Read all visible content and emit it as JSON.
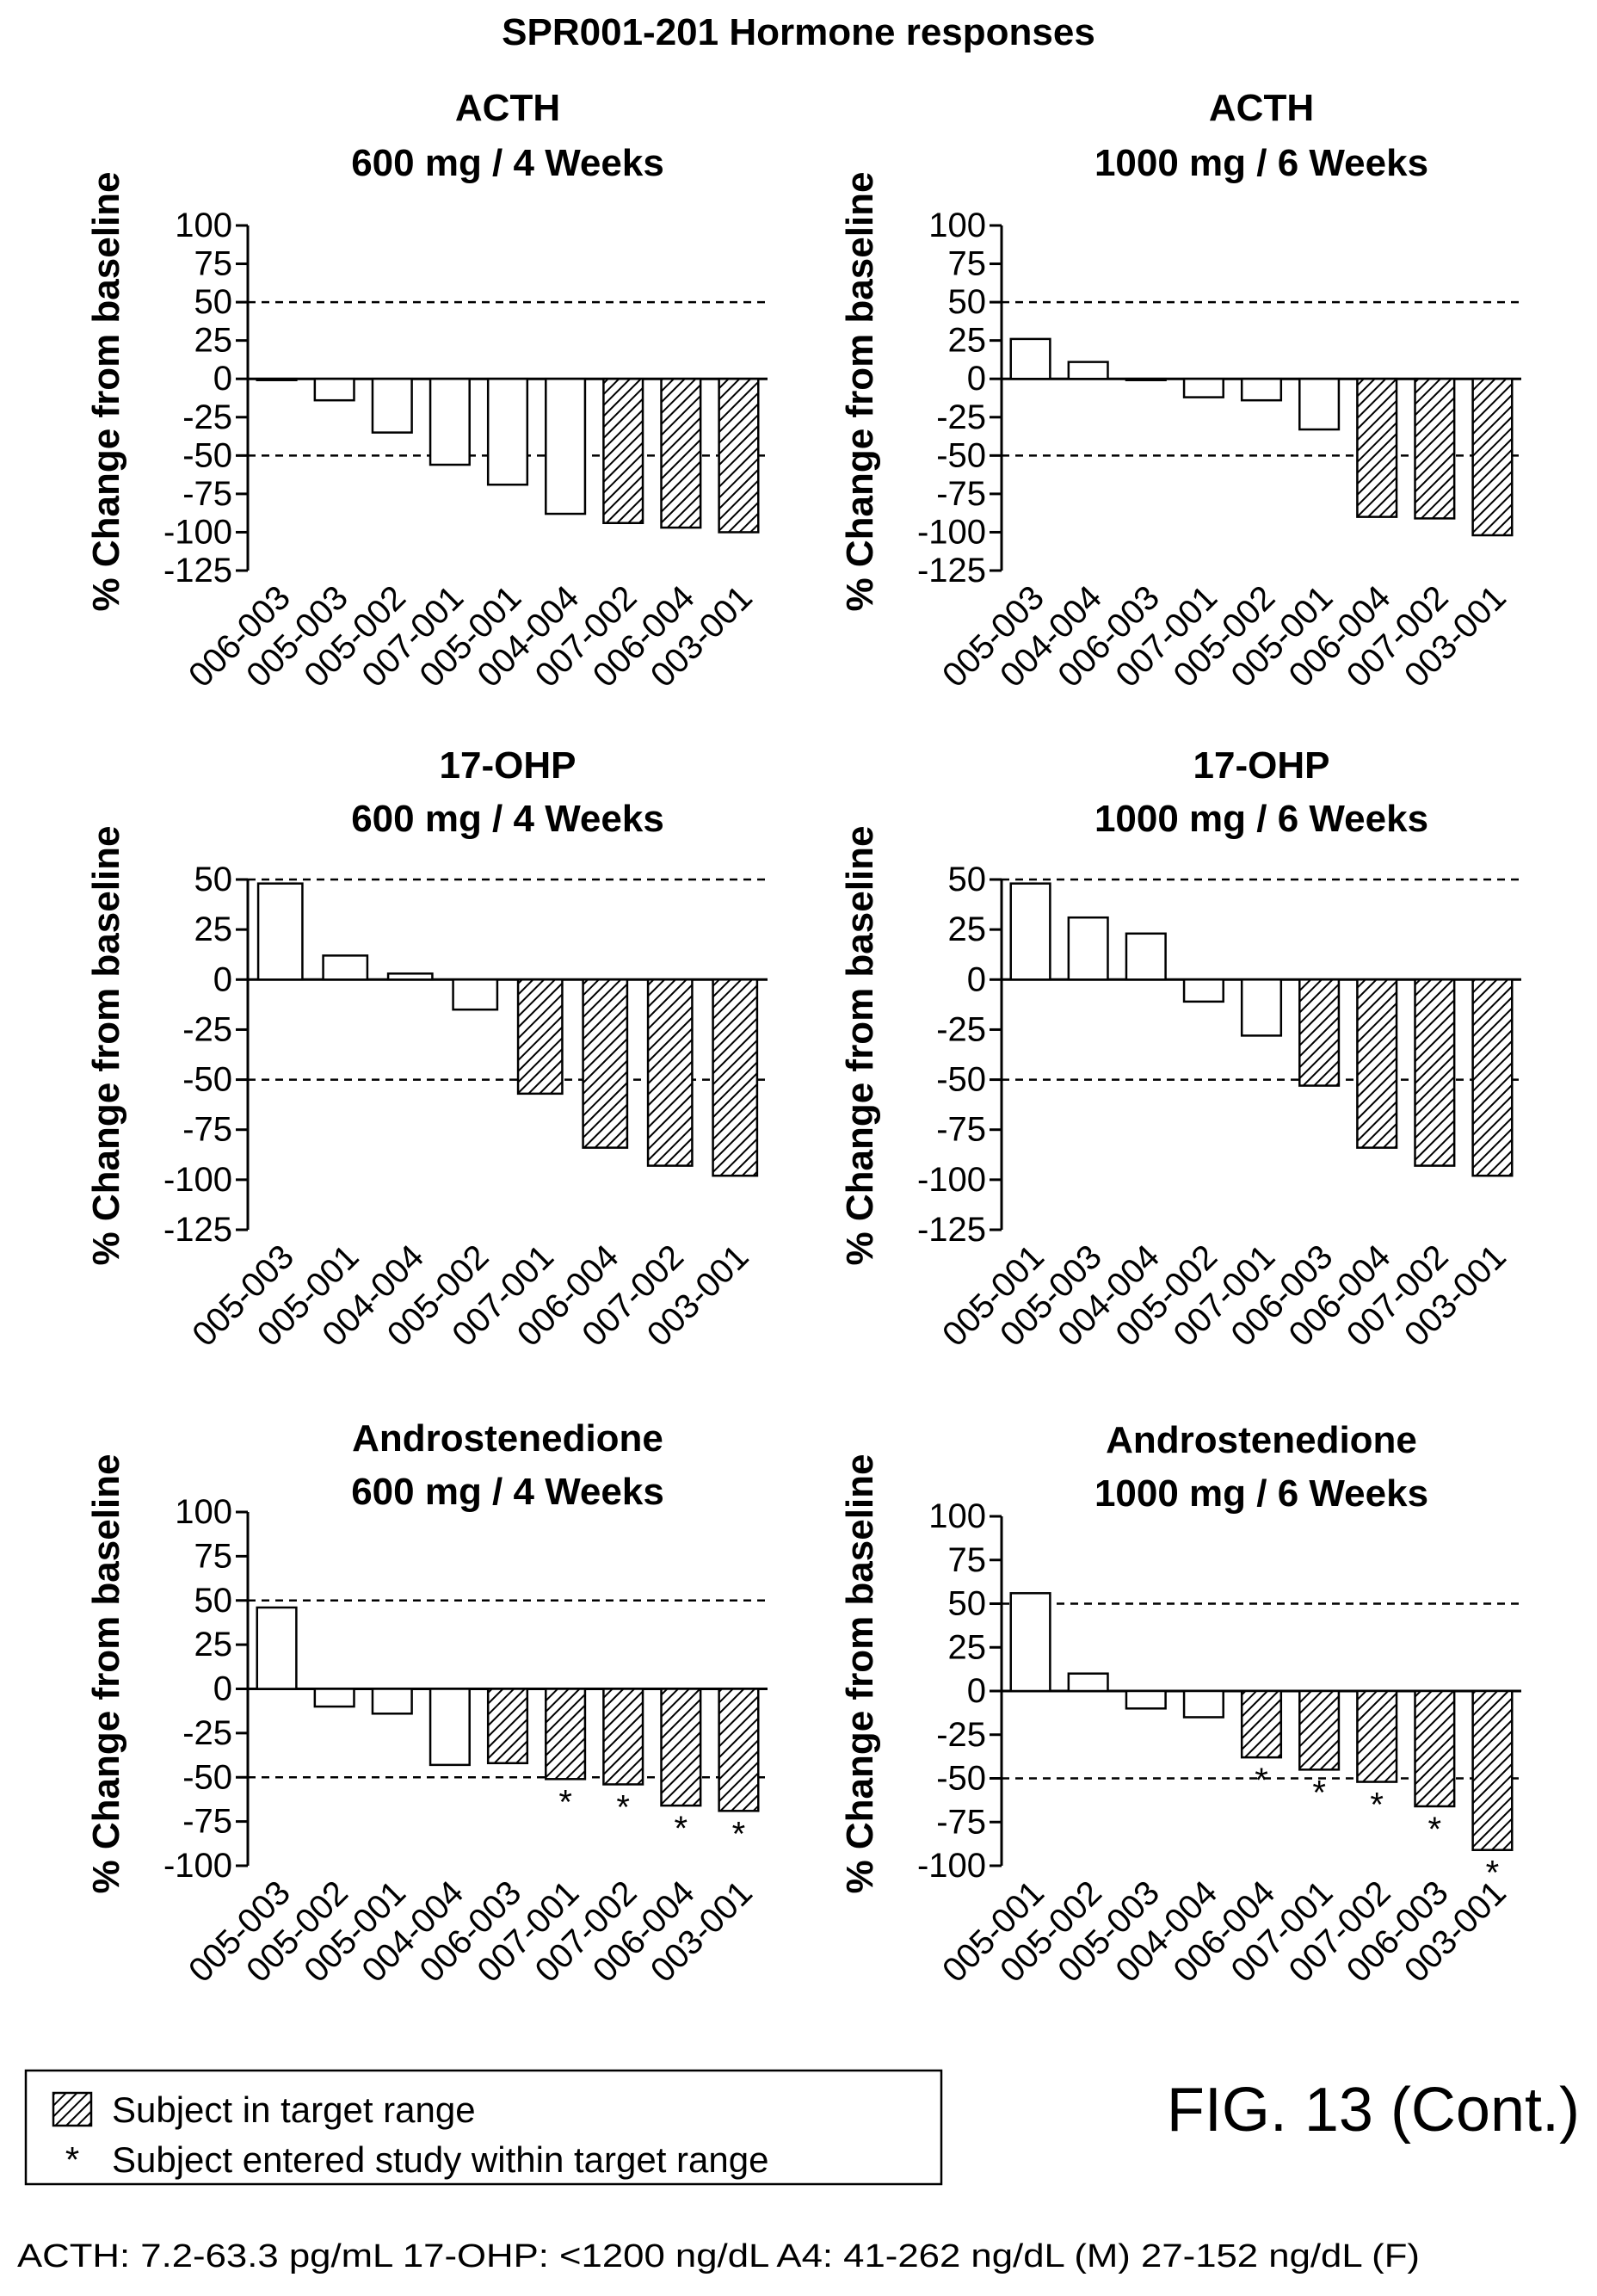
{
  "title": "SPR001-201 Hormone responses",
  "figure_label": "FIG. 13 (Cont.)",
  "legend": {
    "target": "Subject in target range",
    "entered": "Subject entered study within target range"
  },
  "footer": "ACTH: 7.2-63.3 pg/mL    17-OHP: <1200 ng/dL    A4: 41-262 ng/dL (M) 27-152 ng/dL (F)",
  "chart_data": [
    {
      "type": "bar",
      "title": [
        "ACTH",
        "600 mg / 4 Weeks"
      ],
      "ylabel": "% Change from baseline",
      "ylim": [
        -125,
        100
      ],
      "yticks": [
        100,
        75,
        50,
        25,
        0,
        -25,
        -50,
        -75,
        -100,
        -125
      ],
      "reference_lines": [
        50,
        -50
      ],
      "categories": [
        "006-003",
        "005-003",
        "005-002",
        "007-001",
        "005-001",
        "004-004",
        "007-002",
        "006-004",
        "003-001"
      ],
      "values": [
        0,
        -14,
        -35,
        -56,
        -69,
        -88,
        -94,
        -97,
        -100
      ],
      "in_target_range": [
        false,
        false,
        false,
        false,
        false,
        false,
        true,
        true,
        true
      ],
      "entered_within_range": [
        false,
        false,
        false,
        false,
        false,
        false,
        false,
        false,
        false
      ]
    },
    {
      "type": "bar",
      "title": [
        "ACTH",
        "1000 mg / 6 Weeks"
      ],
      "ylabel": "% Change from baseline",
      "ylim": [
        -125,
        100
      ],
      "yticks": [
        100,
        75,
        50,
        25,
        0,
        -25,
        -50,
        -75,
        -100,
        -125
      ],
      "reference_lines": [
        50,
        -50
      ],
      "categories": [
        "005-003",
        "004-004",
        "006-003",
        "007-001",
        "005-002",
        "005-001",
        "006-004",
        "007-002",
        "003-001"
      ],
      "values": [
        26,
        11,
        0,
        -12,
        -14,
        -33,
        -90,
        -91,
        -102
      ],
      "in_target_range": [
        false,
        false,
        false,
        false,
        false,
        false,
        true,
        true,
        true
      ],
      "entered_within_range": [
        false,
        false,
        false,
        false,
        false,
        false,
        false,
        false,
        false
      ]
    },
    {
      "type": "bar",
      "title": [
        "17-OHP",
        "600 mg / 4 Weeks"
      ],
      "ylabel": "% Change from baseline",
      "ylim": [
        -125,
        50
      ],
      "yticks": [
        50,
        25,
        0,
        -25,
        -50,
        -75,
        -100,
        -125
      ],
      "reference_lines": [
        50,
        -50
      ],
      "categories": [
        "005-003",
        "005-001",
        "004-004",
        "005-002",
        "007-001",
        "006-004",
        "007-002",
        "003-001"
      ],
      "values": [
        48,
        12,
        3,
        -15,
        -57,
        -84,
        -93,
        -98
      ],
      "in_target_range": [
        false,
        false,
        false,
        false,
        true,
        true,
        true,
        true
      ],
      "entered_within_range": [
        false,
        false,
        false,
        false,
        false,
        false,
        false,
        false
      ]
    },
    {
      "type": "bar",
      "title": [
        "17-OHP",
        "1000 mg / 6 Weeks"
      ],
      "ylabel": "% Change from baseline",
      "ylim": [
        -125,
        50
      ],
      "yticks": [
        50,
        25,
        0,
        -25,
        -50,
        -75,
        -100,
        -125
      ],
      "reference_lines": [
        50,
        -50
      ],
      "categories": [
        "005-001",
        "005-003",
        "004-004",
        "005-002",
        "007-001",
        "006-003",
        "006-004",
        "007-002",
        "003-001"
      ],
      "values": [
        48,
        31,
        23,
        -11,
        -28,
        -53,
        -84,
        -93,
        -98
      ],
      "in_target_range": [
        false,
        false,
        false,
        false,
        false,
        true,
        true,
        true,
        true
      ],
      "entered_within_range": [
        false,
        false,
        false,
        false,
        false,
        false,
        false,
        false,
        false
      ]
    },
    {
      "type": "bar",
      "title": [
        "Androstenedione",
        "600 mg / 4 Weeks"
      ],
      "ylabel": "% Change from baseline",
      "ylim": [
        -100,
        100
      ],
      "yticks": [
        100,
        75,
        50,
        25,
        0,
        -25,
        -50,
        -75,
        -100
      ],
      "reference_lines": [
        50,
        -50
      ],
      "categories": [
        "005-003",
        "005-002",
        "005-001",
        "004-004",
        "006-003",
        "007-001",
        "007-002",
        "006-004",
        "003-001"
      ],
      "values": [
        46,
        -10,
        -14,
        -43,
        -42,
        -51,
        -54,
        -66,
        -69
      ],
      "in_target_range": [
        false,
        false,
        false,
        false,
        true,
        true,
        true,
        true,
        true
      ],
      "entered_within_range": [
        false,
        false,
        false,
        false,
        false,
        true,
        true,
        true,
        true
      ]
    },
    {
      "type": "bar",
      "title": [
        "Androstenedione",
        "1000 mg / 6 Weeks"
      ],
      "ylabel": "% Change from baseline",
      "ylim": [
        -100,
        100
      ],
      "yticks": [
        100,
        75,
        50,
        25,
        0,
        -25,
        -50,
        -75,
        -100
      ],
      "reference_lines": [
        50,
        -50
      ],
      "categories": [
        "005-001",
        "005-002",
        "005-003",
        "004-004",
        "006-004",
        "007-001",
        "007-002",
        "006-003",
        "003-001"
      ],
      "values": [
        56,
        10,
        -10,
        -15,
        -38,
        -45,
        -52,
        -66,
        -91
      ],
      "in_target_range": [
        false,
        false,
        false,
        false,
        true,
        true,
        true,
        true,
        true
      ],
      "entered_within_range": [
        false,
        false,
        false,
        false,
        true,
        true,
        true,
        true,
        true
      ]
    }
  ]
}
